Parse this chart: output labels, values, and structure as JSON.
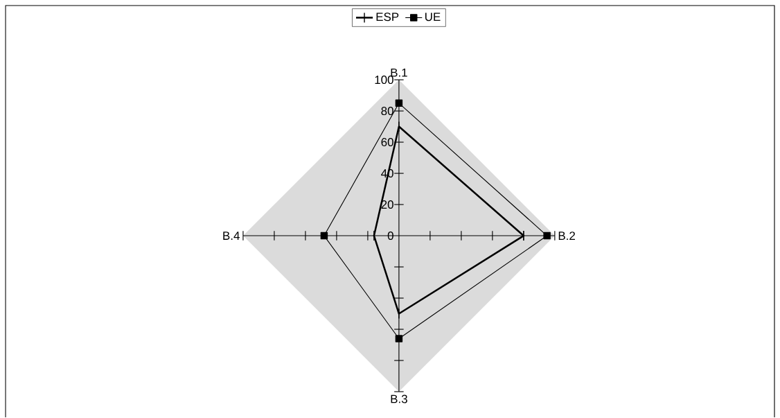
{
  "chart_data": {
    "type": "radar",
    "categories": [
      "B.1",
      "B.2",
      "B.3",
      "B.4"
    ],
    "series": [
      {
        "name": "ESP",
        "color": "#000000",
        "marker": "cross",
        "values": [
          70,
          80,
          50,
          16
        ]
      },
      {
        "name": "UE",
        "color": "#000000",
        "marker": "square",
        "values": [
          85,
          95,
          66,
          48
        ]
      }
    ],
    "ylim": [
      0,
      100
    ],
    "yticks": [
      0,
      20,
      40,
      60,
      80,
      100
    ],
    "legend": "top"
  }
}
